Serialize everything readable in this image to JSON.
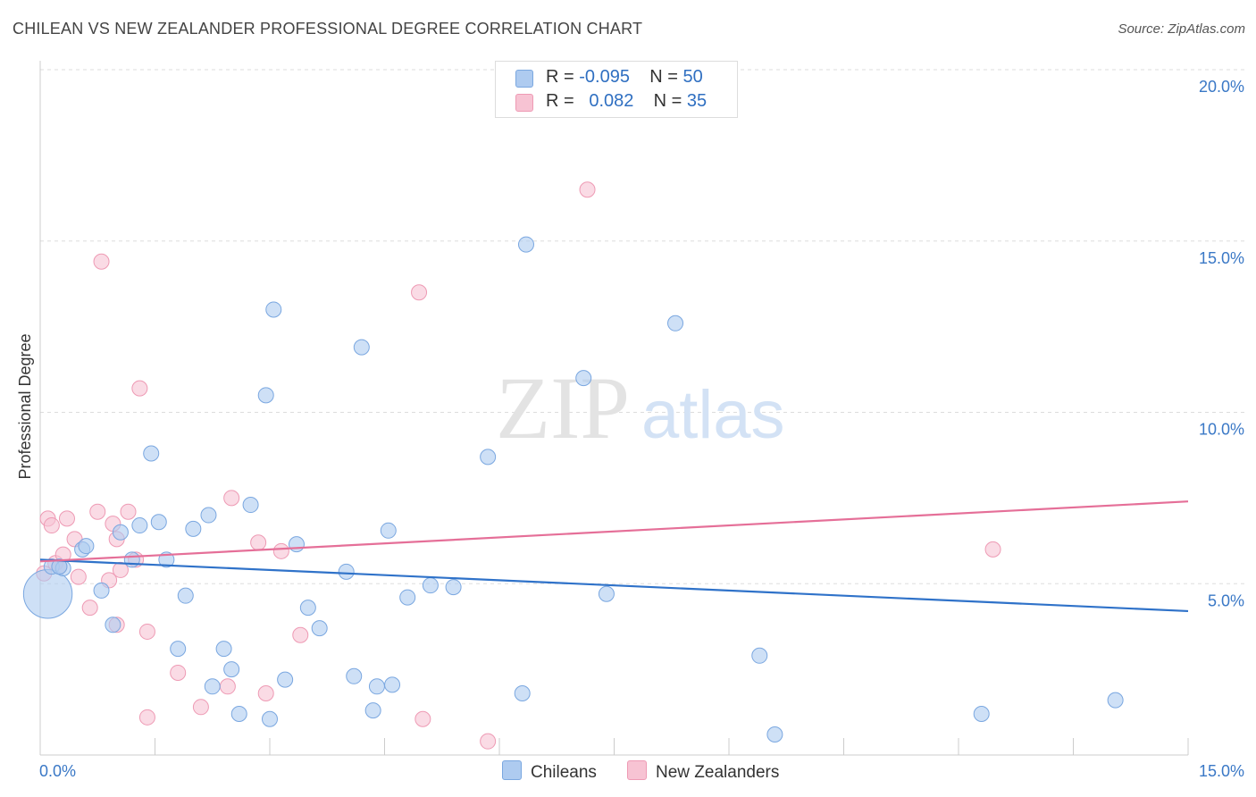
{
  "title": "CHILEAN VS NEW ZEALANDER PROFESSIONAL DEGREE CORRELATION CHART",
  "source": "Source: ZipAtlas.com",
  "watermark": {
    "zip": "ZIP",
    "atlas": "atlas"
  },
  "legend": {
    "rows": [
      {
        "r_label": "R = ",
        "r_value": "-0.095",
        "n_label": "N = ",
        "n_value": "50"
      },
      {
        "r_label": "R = ",
        "r_value": "0.082",
        "n_label": "N = ",
        "n_value": "35"
      }
    ]
  },
  "colors": {
    "blue_fill": "#aecbf0",
    "blue_stroke": "#7aa7e0",
    "blue_line": "#2f72c9",
    "pink_fill": "#f7c3d3",
    "pink_stroke": "#ee9ab4",
    "pink_line": "#e56f98",
    "grid": "#dddddd",
    "tick_label": "#3a78c6"
  },
  "chart_data": {
    "type": "scatter",
    "title": "CHILEAN VS NEW ZEALANDER PROFESSIONAL DEGREE CORRELATION CHART",
    "xlabel": "",
    "ylabel": "Professional Degree",
    "xlim": [
      0,
      15
    ],
    "ylim": [
      0,
      20
    ],
    "x_tick_labels": [
      "0.0%",
      "15.0%"
    ],
    "y_ticks": [
      5,
      10,
      15,
      20
    ],
    "y_tick_labels": [
      "5.0%",
      "10.0%",
      "15.0%",
      "20.0%"
    ],
    "grid": true,
    "legend_position": "bottom",
    "series": [
      {
        "name": "Chileans",
        "r": -0.095,
        "n": 50,
        "trend": [
          [
            0,
            5.7
          ],
          [
            15,
            4.2
          ]
        ],
        "points": [
          [
            0.1,
            4.7,
            3.2
          ],
          [
            0.15,
            5.5,
            1
          ],
          [
            0.3,
            5.45,
            1
          ],
          [
            0.55,
            6.0,
            1
          ],
          [
            0.6,
            6.1,
            1
          ],
          [
            0.8,
            4.8,
            1
          ],
          [
            0.95,
            3.8,
            1
          ],
          [
            1.05,
            6.5,
            1
          ],
          [
            1.2,
            5.7,
            1
          ],
          [
            1.3,
            6.7,
            1
          ],
          [
            1.45,
            8.8,
            1
          ],
          [
            1.55,
            6.8,
            1
          ],
          [
            1.65,
            5.7,
            1
          ],
          [
            1.8,
            3.1,
            1
          ],
          [
            1.9,
            4.65,
            1
          ],
          [
            2.0,
            6.6,
            1
          ],
          [
            2.2,
            7.0,
            1
          ],
          [
            2.25,
            2.0,
            1
          ],
          [
            2.4,
            3.1,
            1
          ],
          [
            2.5,
            2.5,
            1
          ],
          [
            2.6,
            1.2,
            1
          ],
          [
            2.75,
            7.3,
            1
          ],
          [
            2.95,
            10.5,
            1
          ],
          [
            3.0,
            1.05,
            1
          ],
          [
            3.05,
            13.0,
            1
          ],
          [
            3.2,
            2.2,
            1
          ],
          [
            3.35,
            6.15,
            1
          ],
          [
            3.5,
            4.3,
            1
          ],
          [
            3.65,
            3.7,
            1
          ],
          [
            4.0,
            5.35,
            1
          ],
          [
            4.1,
            2.3,
            1
          ],
          [
            4.2,
            11.9,
            1
          ],
          [
            4.35,
            1.3,
            1
          ],
          [
            4.4,
            2.0,
            1
          ],
          [
            4.55,
            6.55,
            1
          ],
          [
            4.6,
            2.05,
            1
          ],
          [
            4.8,
            4.6,
            1
          ],
          [
            5.1,
            4.95,
            1
          ],
          [
            5.4,
            4.9,
            1
          ],
          [
            5.85,
            8.7,
            1
          ],
          [
            6.3,
            1.8,
            1
          ],
          [
            6.35,
            14.9,
            1
          ],
          [
            7.1,
            11.0,
            1
          ],
          [
            7.4,
            4.7,
            1
          ],
          [
            8.3,
            12.6,
            1
          ],
          [
            9.4,
            2.9,
            1
          ],
          [
            9.6,
            0.6,
            1
          ],
          [
            12.3,
            1.2,
            1
          ],
          [
            14.05,
            1.6,
            1
          ],
          [
            0.25,
            5.5,
            1
          ]
        ]
      },
      {
        "name": "New Zealanders",
        "r": 0.082,
        "n": 35,
        "trend": [
          [
            0,
            5.65
          ],
          [
            15,
            7.4
          ]
        ],
        "points": [
          [
            0.05,
            5.3,
            1
          ],
          [
            0.1,
            6.9,
            1
          ],
          [
            0.15,
            6.7,
            1
          ],
          [
            0.2,
            5.6,
            1
          ],
          [
            0.25,
            5.5,
            1
          ],
          [
            0.3,
            5.85,
            1
          ],
          [
            0.35,
            6.9,
            1
          ],
          [
            0.45,
            6.3,
            1
          ],
          [
            0.5,
            5.2,
            1
          ],
          [
            0.65,
            4.3,
            1
          ],
          [
            0.75,
            7.1,
            1
          ],
          [
            0.8,
            14.4,
            1
          ],
          [
            0.9,
            5.1,
            1
          ],
          [
            0.95,
            6.75,
            1
          ],
          [
            1.0,
            3.8,
            1
          ],
          [
            1.0,
            6.3,
            1
          ],
          [
            1.05,
            5.4,
            1
          ],
          [
            1.15,
            7.1,
            1
          ],
          [
            1.25,
            5.7,
            1
          ],
          [
            1.3,
            10.7,
            1
          ],
          [
            1.4,
            3.6,
            1
          ],
          [
            1.4,
            1.1,
            1
          ],
          [
            1.8,
            2.4,
            1
          ],
          [
            2.1,
            1.4,
            1
          ],
          [
            2.45,
            2.0,
            1
          ],
          [
            2.5,
            7.5,
            1
          ],
          [
            2.85,
            6.2,
            1
          ],
          [
            2.95,
            1.8,
            1
          ],
          [
            3.15,
            5.95,
            1
          ],
          [
            3.4,
            3.5,
            1
          ],
          [
            4.95,
            13.5,
            1
          ],
          [
            5.0,
            1.05,
            1
          ],
          [
            5.85,
            0.4,
            1
          ],
          [
            7.15,
            16.5,
            1
          ],
          [
            12.45,
            6.0,
            1
          ]
        ]
      }
    ]
  }
}
